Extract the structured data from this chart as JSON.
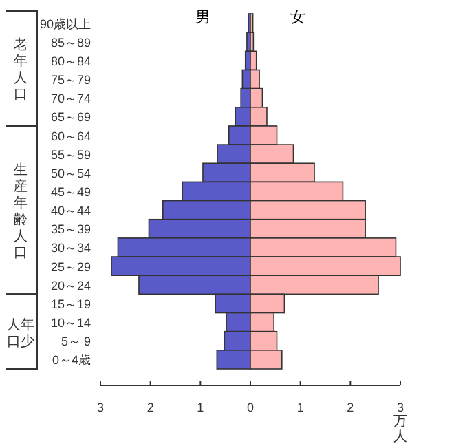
{
  "chart_data": {
    "type": "bar",
    "orientation": "horizontal",
    "stacked": true,
    "xlabel": "万人",
    "categories": [
      "90歳以上",
      "85～89",
      "80～84",
      "75～79",
      "70～74",
      "65～69",
      "60～64",
      "55～59",
      "50～54",
      "45～49",
      "40～44",
      "35～39",
      "30～34",
      "25～29",
      "20～24",
      "15～19",
      "10～14",
      "5～ 9",
      "0～4歳"
    ],
    "series": [
      {
        "name": "男",
        "color": "#5a5ac8",
        "values": [
          -0.04,
          -0.07,
          -0.1,
          -0.16,
          -0.19,
          -0.3,
          -0.43,
          -0.66,
          -0.95,
          -1.36,
          -1.75,
          -2.03,
          -2.65,
          -2.78,
          -2.23,
          -0.7,
          -0.48,
          -0.52,
          -0.67
        ]
      },
      {
        "name": "女",
        "color": "#ffb4b4",
        "values": [
          0.05,
          0.06,
          0.12,
          0.18,
          0.24,
          0.33,
          0.53,
          0.86,
          1.28,
          1.85,
          2.3,
          2.3,
          2.91,
          3.0,
          2.56,
          0.68,
          0.47,
          0.53,
          0.63
        ]
      }
    ],
    "xlim": [
      -3,
      3
    ],
    "xticks": [
      {
        "value": -3,
        "label": "3"
      },
      {
        "value": -2,
        "label": "2"
      },
      {
        "value": -1,
        "label": "1"
      },
      0,
      1,
      2,
      3
    ],
    "annotations": [
      "老年人口",
      "生産年齢人口",
      "年少人口"
    ],
    "legend": false
  }
}
